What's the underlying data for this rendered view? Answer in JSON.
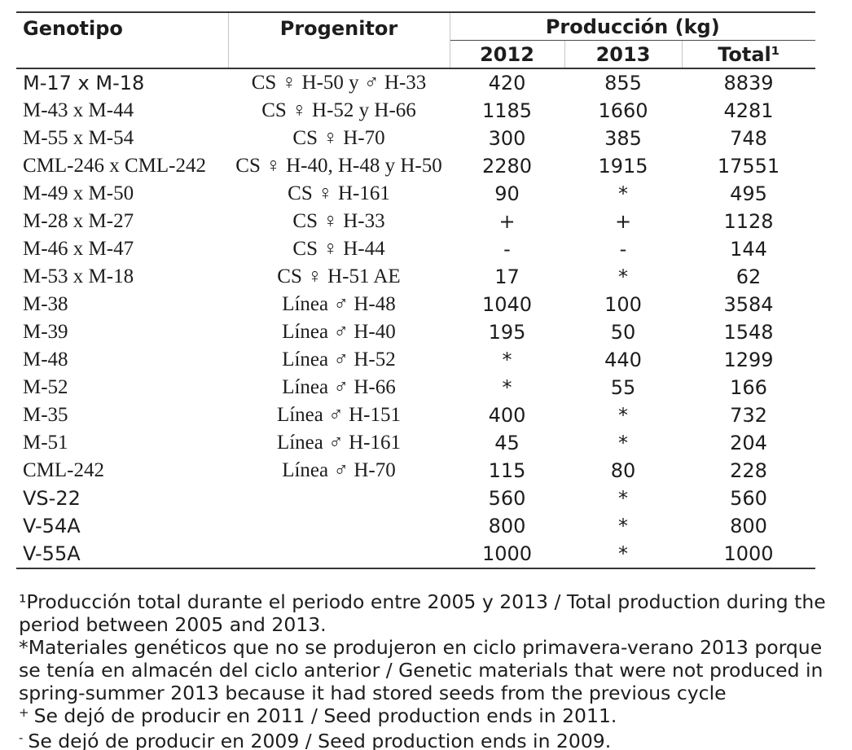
{
  "table": {
    "headers": {
      "genotype": "Genotipo",
      "progenitor": "Progenitor",
      "production_group": "Producción (kg)",
      "col_2012": "2012",
      "col_2013": "2013",
      "total": "Total¹"
    },
    "rows": [
      {
        "genotype": "M-17 x M-18",
        "genotype_serif": false,
        "progenitor": "CS ♀ H-50 y ♂ H-33",
        "y2012": "420",
        "y2013": "855",
        "total": "8839"
      },
      {
        "genotype": "M-43 x M-44",
        "genotype_serif": true,
        "progenitor": "CS ♀ H-52 y H-66",
        "y2012": "1185",
        "y2013": "1660",
        "total": "4281"
      },
      {
        "genotype": "M-55 x M-54",
        "genotype_serif": true,
        "progenitor": "CS ♀ H-70",
        "y2012": "300",
        "y2013": "385",
        "total": "748"
      },
      {
        "genotype": "CML-246 x CML-242",
        "genotype_serif": true,
        "progenitor": "CS ♀ H-40, H-48 y H-50",
        "y2012": "2280",
        "y2013": "1915",
        "total": "17551"
      },
      {
        "genotype": "M-49 x M-50",
        "genotype_serif": true,
        "progenitor": "CS ♀ H-161",
        "y2012": "90",
        "y2013": "*",
        "total": "495"
      },
      {
        "genotype": "M-28 x M-27",
        "genotype_serif": true,
        "progenitor": "CS ♀ H-33",
        "y2012": "+",
        "y2013": "+",
        "total": "1128"
      },
      {
        "genotype": "M-46 x M-47",
        "genotype_serif": true,
        "progenitor": "CS ♀ H-44",
        "y2012": "-",
        "y2013": "-",
        "total": "144"
      },
      {
        "genotype": "M-53 x M-18",
        "genotype_serif": true,
        "progenitor": "CS ♀ H-51 AE",
        "y2012": "17",
        "y2013": "*",
        "total": "62"
      },
      {
        "genotype": "M-38",
        "genotype_serif": true,
        "progenitor": "Línea ♂ H-48",
        "y2012": "1040",
        "y2013": "100",
        "total": "3584"
      },
      {
        "genotype": "M-39",
        "genotype_serif": true,
        "progenitor": "Línea ♂ H-40",
        "y2012": "195",
        "y2013": "50",
        "total": "1548"
      },
      {
        "genotype": "M-48",
        "genotype_serif": true,
        "progenitor": "Línea ♂ H-52",
        "y2012": "*",
        "y2013": "440",
        "total": "1299"
      },
      {
        "genotype": "M-52",
        "genotype_serif": true,
        "progenitor": "Línea ♂ H-66",
        "y2012": "*",
        "y2013": "55",
        "total": "166"
      },
      {
        "genotype": "M-35",
        "genotype_serif": true,
        "progenitor": "Línea ♂ H-151",
        "y2012": "400",
        "y2013": "*",
        "total": "732"
      },
      {
        "genotype": "M-51",
        "genotype_serif": true,
        "progenitor": "Línea ♂ H-161",
        "y2012": "45",
        "y2013": "*",
        "total": "204"
      },
      {
        "genotype": "CML-242",
        "genotype_serif": true,
        "progenitor": "Línea ♂ H-70",
        "y2012": "115",
        "y2013": "80",
        "total": "228"
      },
      {
        "genotype": "VS-22",
        "genotype_serif": false,
        "progenitor": "",
        "y2012": "560",
        "y2013": "*",
        "total": "560"
      },
      {
        "genotype": "V-54A",
        "genotype_serif": false,
        "progenitor": "",
        "y2012": "800",
        "y2013": "*",
        "total": "800"
      },
      {
        "genotype": "V-55A",
        "genotype_serif": false,
        "progenitor": "",
        "y2012": "1000",
        "y2013": "*",
        "total": "1000"
      }
    ]
  },
  "footnotes": [
    {
      "marker": "¹",
      "sup": false,
      "text": "Producción total durante el periodo entre 2005 y 2013 / Total production during the period between 2005 and 2013."
    },
    {
      "marker": "*",
      "sup": false,
      "text": "Materiales genéticos que no se produjeron en ciclo primavera-verano 2013 porque se tenía en almacén del ciclo anterior / Genetic materials that were not produced in spring-summer 2013 because it had stored seeds from the previous cycle"
    },
    {
      "marker": "+",
      "sup": true,
      "text": "Se dejó de producir en 2011 / Seed production ends in 2011."
    },
    {
      "marker": "-",
      "sup": true,
      "text": "Se dejó de producir en 2009 / Seed production ends in 2009."
    }
  ],
  "colors": {
    "text": "#1d1d1d",
    "rule": "#363636",
    "light_border": "#c6c6c6",
    "background": "#ffffff"
  }
}
